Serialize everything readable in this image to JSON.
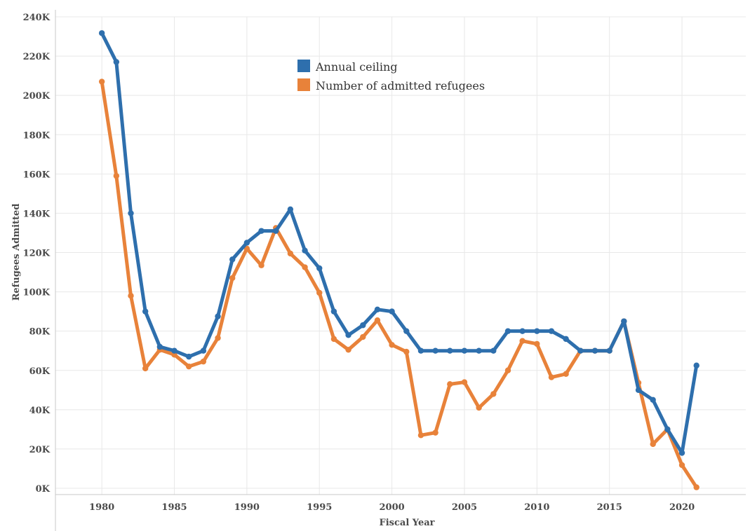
{
  "chart_data": {
    "type": "line",
    "xlabel": "Fiscal Year",
    "ylabel": "Refugees Admitted",
    "xlim": [
      1976.8,
      2024.4
    ],
    "ylim": [
      0,
      240000
    ],
    "x_ticks": [
      1980,
      1985,
      1990,
      1995,
      2000,
      2005,
      2010,
      2015,
      2020
    ],
    "y_ticks": [
      {
        "value": 0,
        "label": "0K"
      },
      {
        "value": 20000,
        "label": "20K"
      },
      {
        "value": 40000,
        "label": "40K"
      },
      {
        "value": 60000,
        "label": "60K"
      },
      {
        "value": 80000,
        "label": "80K"
      },
      {
        "value": 100000,
        "label": "100K"
      },
      {
        "value": 120000,
        "label": "120K"
      },
      {
        "value": 140000,
        "label": "140K"
      },
      {
        "value": 160000,
        "label": "160K"
      },
      {
        "value": 180000,
        "label": "180K"
      },
      {
        "value": 200000,
        "label": "200K"
      },
      {
        "value": 220000,
        "label": "220K"
      },
      {
        "value": 240000,
        "label": "240K"
      }
    ],
    "grid": true,
    "legend_position": "top-center",
    "x": [
      1980,
      1981,
      1982,
      1983,
      1984,
      1985,
      1986,
      1987,
      1988,
      1989,
      1990,
      1991,
      1992,
      1993,
      1994,
      1995,
      1996,
      1997,
      1998,
      1999,
      2000,
      2001,
      2002,
      2003,
      2004,
      2005,
      2006,
      2007,
      2008,
      2009,
      2010,
      2011,
      2012,
      2013,
      2014,
      2015,
      2016,
      2017,
      2018,
      2019,
      2020,
      2021
    ],
    "series": [
      {
        "name": "Annual ceiling",
        "color": "#2e6fad",
        "values": [
          231700,
          217000,
          140000,
          90000,
          72000,
          70000,
          67000,
          70000,
          87500,
          116500,
          125000,
          131000,
          131000,
          142000,
          121000,
          112000,
          90000,
          78000,
          83000,
          91000,
          90000,
          80000,
          70000,
          70000,
          70000,
          70000,
          70000,
          70000,
          80000,
          80000,
          80000,
          80000,
          76000,
          70000,
          70000,
          70000,
          85000,
          50000,
          45000,
          30000,
          18000,
          62500
        ]
      },
      {
        "name": "Number of admitted refugees",
        "color": "#e8823a",
        "values": [
          207000,
          159000,
          98000,
          61000,
          70500,
          68000,
          62000,
          64500,
          76500,
          107000,
          122000,
          113500,
          132500,
          119500,
          112500,
          99500,
          76000,
          70500,
          77000,
          85500,
          73000,
          69500,
          27000,
          28300,
          53000,
          54000,
          41000,
          48000,
          60000,
          75000,
          73500,
          56500,
          58200,
          70000,
          70000,
          70000,
          85000,
          53700,
          22500,
          30000,
          11800,
          500
        ]
      }
    ]
  }
}
